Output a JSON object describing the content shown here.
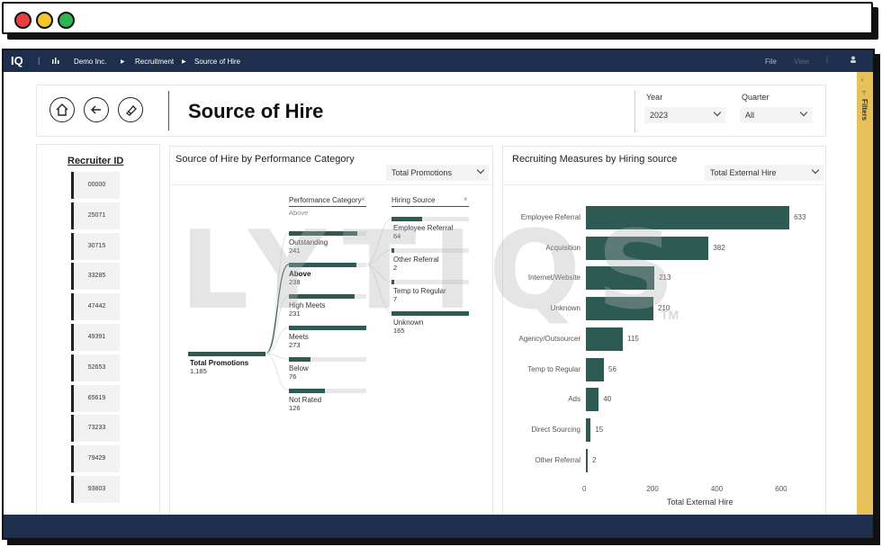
{
  "window_controls": {
    "close_color": "#e84040",
    "minimize_color": "#f2c531",
    "maximize_color": "#2db553"
  },
  "appbar": {
    "logo": "IQ",
    "breadcrumb": [
      "Demo Inc.",
      "Recruitment",
      "Source of Hire"
    ],
    "menu_file": "File",
    "menu_view": "View"
  },
  "filters_label": "Filters",
  "header": {
    "title": "Source of Hire",
    "year_label": "Year",
    "year_value": "2023",
    "quarter_label": "Quarter",
    "quarter_value": "All"
  },
  "recruiters": {
    "title": "Recruiter ID",
    "ids": [
      "00000",
      "25071",
      "30715",
      "33285",
      "47442",
      "49391",
      "52653",
      "65619",
      "73233",
      "79429",
      "93803"
    ]
  },
  "tree": {
    "title": "Source of Hire by Performance Category",
    "measure": "Total Promotions",
    "col1_header": "Performance Category",
    "col1_sub": "Above",
    "col2_header": "Hiring Source",
    "root": {
      "label": "Total Promotions",
      "value": "1,185"
    },
    "categories": [
      {
        "label": "Outstanding",
        "value": "241",
        "fraction": 0.88
      },
      {
        "label": "Above",
        "value": "238",
        "fraction": 0.87
      },
      {
        "label": "High Meets",
        "value": "231",
        "fraction": 0.85
      },
      {
        "label": "Meets",
        "value": "273",
        "fraction": 1.0
      },
      {
        "label": "Below",
        "value": "76",
        "fraction": 0.28
      },
      {
        "label": "Not Rated",
        "value": "126",
        "fraction": 0.46
      }
    ],
    "sources": [
      {
        "label": "Employee Referral",
        "value": "64",
        "fraction": 0.39
      },
      {
        "label": "Other Referral",
        "value": "2",
        "fraction": 0.02
      },
      {
        "label": "Temp to Regular",
        "value": "7",
        "fraction": 0.04
      },
      {
        "label": "Unknown",
        "value": "165",
        "fraction": 1.0
      }
    ]
  },
  "chart_data": {
    "type": "bar",
    "title": "Recruiting Measures by Hiring source",
    "measure": "Total External Hire",
    "categories": [
      "Employee Referral",
      "Acquisition",
      "Internet/Website",
      "Unknown",
      "Agency/Outsourcer",
      "Temp to Regular",
      "Ads",
      "Direct Sourcing",
      "Other Referral"
    ],
    "values": [
      633,
      382,
      213,
      210,
      115,
      56,
      40,
      15,
      2
    ],
    "xlabel": "Total External Hire",
    "xticks": [
      "0",
      "200",
      "400",
      "600"
    ],
    "xlim": [
      0,
      700
    ],
    "bar_color": "#2e5a54"
  },
  "watermark": "LYTIQS",
  "watermark_tm": "TM"
}
